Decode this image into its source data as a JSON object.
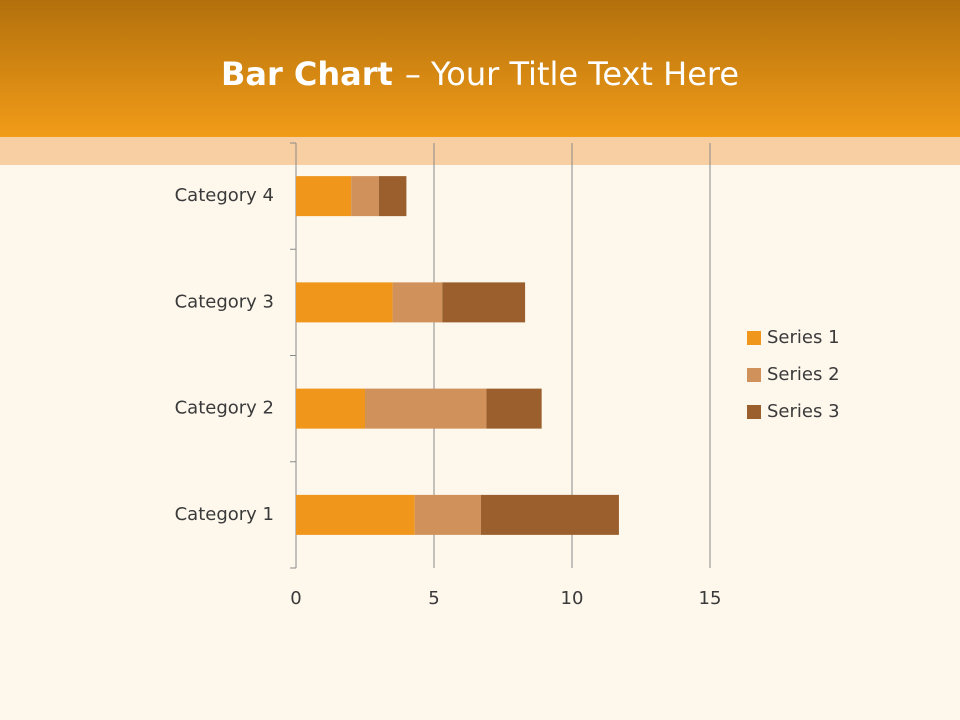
{
  "chart_data": {
    "type": "stacked-barh",
    "title_parts": [
      "Bar Chart",
      "– Your Title Text Here"
    ],
    "categories": [
      "Category 1",
      "Category 2",
      "Category 3",
      "Category 4"
    ],
    "series": [
      {
        "name": "Series 1",
        "color": "#f0961b",
        "values": [
          4.3,
          2.5,
          3.5,
          2.0
        ]
      },
      {
        "name": "Series 2",
        "color": "#d0915a",
        "values": [
          2.4,
          4.4,
          1.8,
          1.0
        ]
      },
      {
        "name": "Series 3",
        "color": "#9a5f2c",
        "values": [
          5.0,
          2.0,
          3.0,
          1.0
        ]
      }
    ],
    "xlim": [
      0,
      15
    ],
    "xticks": [
      0,
      5,
      10,
      15
    ],
    "grid": true,
    "legend": "right"
  }
}
